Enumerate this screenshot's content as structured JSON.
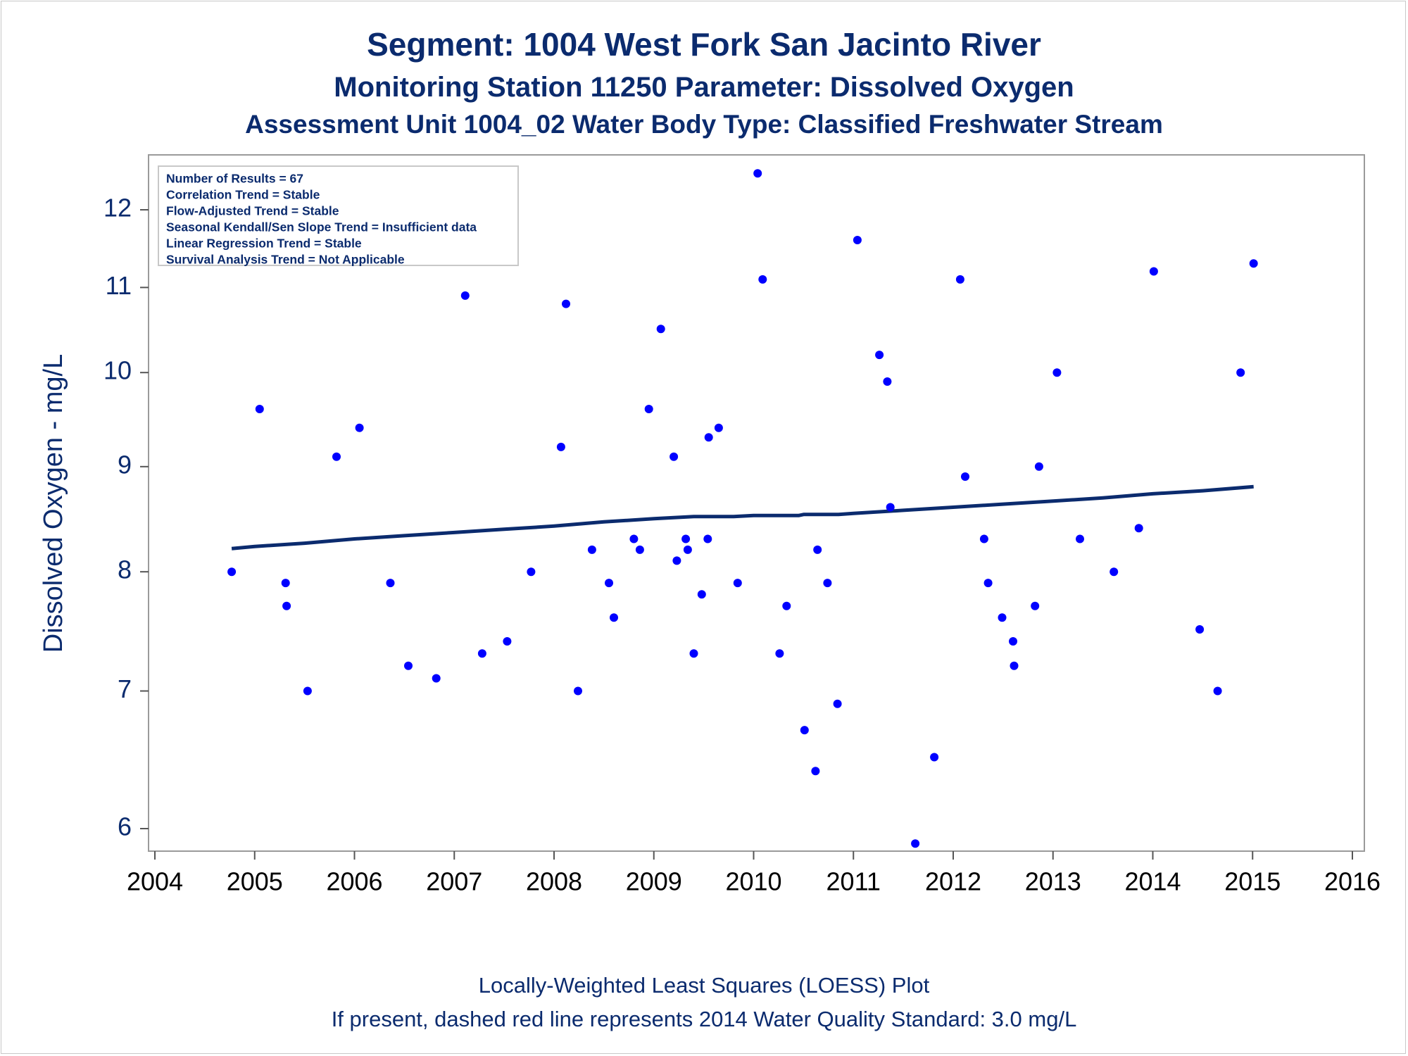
{
  "title": "Segment: 1004  West Fork San Jacinto River",
  "subtitle1": "Monitoring Station 11250 Parameter: Dissolved Oxygen",
  "subtitle2": "Assessment Unit 1004_02   Water Body Type: Classified Freshwater Stream",
  "footnote1": "Locally-Weighted Least Squares (LOESS) Plot",
  "footnote2": "If present, dashed red line represents 2014 Water Quality Standard: 3.0 mg/L",
  "info_box": [
    "Number of Results = 67",
    "Correlation Trend = Stable",
    "Flow-Adjusted Trend = Stable",
    "Seasonal Kendall/Sen Slope Trend = Insufficient data",
    "Linear Regression Trend = Stable",
    "Survival Analysis Trend = Not Applicable"
  ],
  "colors": {
    "text": "#0b2b6e",
    "points": "#0000ff",
    "loess_line": "#0b2b6e",
    "frame": "#9a9a9a"
  },
  "chart_data": {
    "type": "scatter",
    "title": "Segment: 1004  West Fork San Jacinto River",
    "xlabel": "",
    "ylabel": "Dissolved Oxygen - mg/L",
    "x_scale": "linear (years)",
    "y_scale": "log",
    "xlim": [
      2004,
      2016
    ],
    "ylim": [
      5.85,
      12.6
    ],
    "x_ticks": [
      "2004",
      "2005",
      "2006",
      "2007",
      "2008",
      "2009",
      "2010",
      "2011",
      "2012",
      "2013",
      "2014",
      "2015",
      "2016"
    ],
    "y_ticks": [
      "6",
      "7",
      "8",
      "9",
      "10",
      "11",
      "12"
    ],
    "grid": false,
    "legend": "none",
    "series": [
      {
        "type": "scatter",
        "points": [
          [
            2004.77,
            8.0
          ],
          [
            2005.05,
            9.6
          ],
          [
            2005.31,
            7.9
          ],
          [
            2005.32,
            7.7
          ],
          [
            2005.53,
            7.0
          ],
          [
            2005.82,
            9.1
          ],
          [
            2006.05,
            9.4
          ],
          [
            2006.36,
            7.9
          ],
          [
            2006.54,
            7.2
          ],
          [
            2006.82,
            7.1
          ],
          [
            2007.11,
            10.9
          ],
          [
            2007.28,
            7.3
          ],
          [
            2007.53,
            7.4
          ],
          [
            2007.77,
            8.0
          ],
          [
            2008.07,
            9.2
          ],
          [
            2008.12,
            10.8
          ],
          [
            2008.24,
            7.0
          ],
          [
            2008.38,
            8.2
          ],
          [
            2008.55,
            7.9
          ],
          [
            2008.6,
            7.6
          ],
          [
            2008.8,
            8.3
          ],
          [
            2008.86,
            8.2
          ],
          [
            2008.95,
            9.6
          ],
          [
            2009.07,
            10.5
          ],
          [
            2009.2,
            9.1
          ],
          [
            2009.23,
            8.1
          ],
          [
            2009.32,
            8.3
          ],
          [
            2009.34,
            8.2
          ],
          [
            2009.4,
            7.3
          ],
          [
            2009.48,
            7.8
          ],
          [
            2009.54,
            8.3
          ],
          [
            2009.55,
            9.3
          ],
          [
            2009.65,
            9.4
          ],
          [
            2009.84,
            7.9
          ],
          [
            2010.04,
            12.5
          ],
          [
            2010.09,
            11.1
          ],
          [
            2010.26,
            7.3
          ],
          [
            2010.33,
            7.7
          ],
          [
            2010.51,
            6.7
          ],
          [
            2010.62,
            6.4
          ],
          [
            2010.64,
            8.2
          ],
          [
            2010.74,
            7.9
          ],
          [
            2010.84,
            6.9
          ],
          [
            2011.04,
            11.6
          ],
          [
            2011.26,
            10.2
          ],
          [
            2011.34,
            9.9
          ],
          [
            2011.37,
            8.6
          ],
          [
            2011.62,
            5.9
          ],
          [
            2011.81,
            6.5
          ],
          [
            2012.07,
            11.1
          ],
          [
            2012.12,
            8.9
          ],
          [
            2012.31,
            8.3
          ],
          [
            2012.35,
            7.9
          ],
          [
            2012.49,
            7.6
          ],
          [
            2012.6,
            7.4
          ],
          [
            2012.61,
            7.2
          ],
          [
            2012.82,
            7.7
          ],
          [
            2012.86,
            9.0
          ],
          [
            2013.04,
            10.0
          ],
          [
            2013.27,
            8.3
          ],
          [
            2013.61,
            8.0
          ],
          [
            2013.86,
            8.4
          ],
          [
            2014.01,
            11.2
          ],
          [
            2014.47,
            7.5
          ],
          [
            2014.65,
            7.0
          ],
          [
            2014.88,
            10.0
          ],
          [
            2015.01,
            11.3
          ]
        ]
      },
      {
        "type": "line",
        "points": [
          [
            2004.77,
            8.21
          ],
          [
            2005.0,
            8.23
          ],
          [
            2005.5,
            8.26
          ],
          [
            2006.0,
            8.3
          ],
          [
            2006.5,
            8.33
          ],
          [
            2007.0,
            8.36
          ],
          [
            2007.5,
            8.39
          ],
          [
            2008.0,
            8.42
          ],
          [
            2008.5,
            8.46
          ],
          [
            2009.0,
            8.49
          ],
          [
            2009.4,
            8.51
          ],
          [
            2009.8,
            8.51
          ],
          [
            2010.0,
            8.52
          ],
          [
            2010.45,
            8.52
          ],
          [
            2010.5,
            8.53
          ],
          [
            2010.85,
            8.53
          ],
          [
            2011.0,
            8.54
          ],
          [
            2011.5,
            8.57
          ],
          [
            2012.0,
            8.6
          ],
          [
            2012.5,
            8.63
          ],
          [
            2013.0,
            8.66
          ],
          [
            2013.5,
            8.69
          ],
          [
            2014.0,
            8.73
          ],
          [
            2014.5,
            8.76
          ],
          [
            2015.01,
            8.8
          ]
        ]
      }
    ]
  }
}
